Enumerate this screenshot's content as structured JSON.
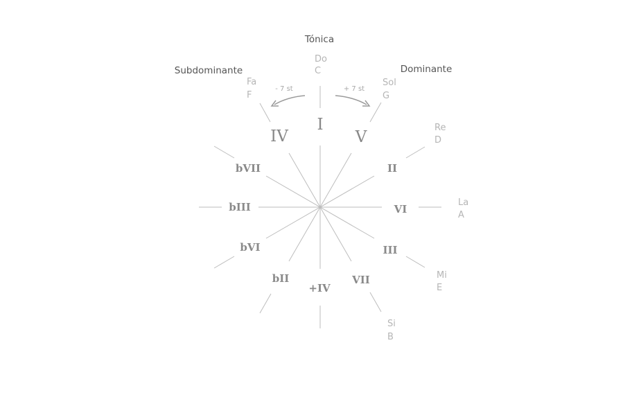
{
  "functions": {
    "tonic": "Tónica",
    "subdominant": "Subdominante",
    "dominant": "Dominante"
  },
  "notes": {
    "do": {
      "solfege": "Do",
      "letter": "C"
    },
    "sol": {
      "solfege": "Sol",
      "letter": "G"
    },
    "re": {
      "solfege": "Re",
      "letter": "D"
    },
    "la": {
      "solfege": "La",
      "letter": "A"
    },
    "mi": {
      "solfege": "Mi",
      "letter": "E"
    },
    "si": {
      "solfege": "Si",
      "letter": "B"
    },
    "fa": {
      "solfege": "Fa",
      "letter": "F"
    }
  },
  "degrees": {
    "I": "I",
    "V": "V",
    "II": "II",
    "VI": "VI",
    "III": "III",
    "VII": "VII",
    "sharpIV": "+IV",
    "bII": "bII",
    "bVI": "bVI",
    "bIII": "bIII",
    "bVII": "bVII",
    "IV": "IV"
  },
  "intervals": {
    "minus": "- 7 st",
    "plus": "+ 7 st"
  }
}
